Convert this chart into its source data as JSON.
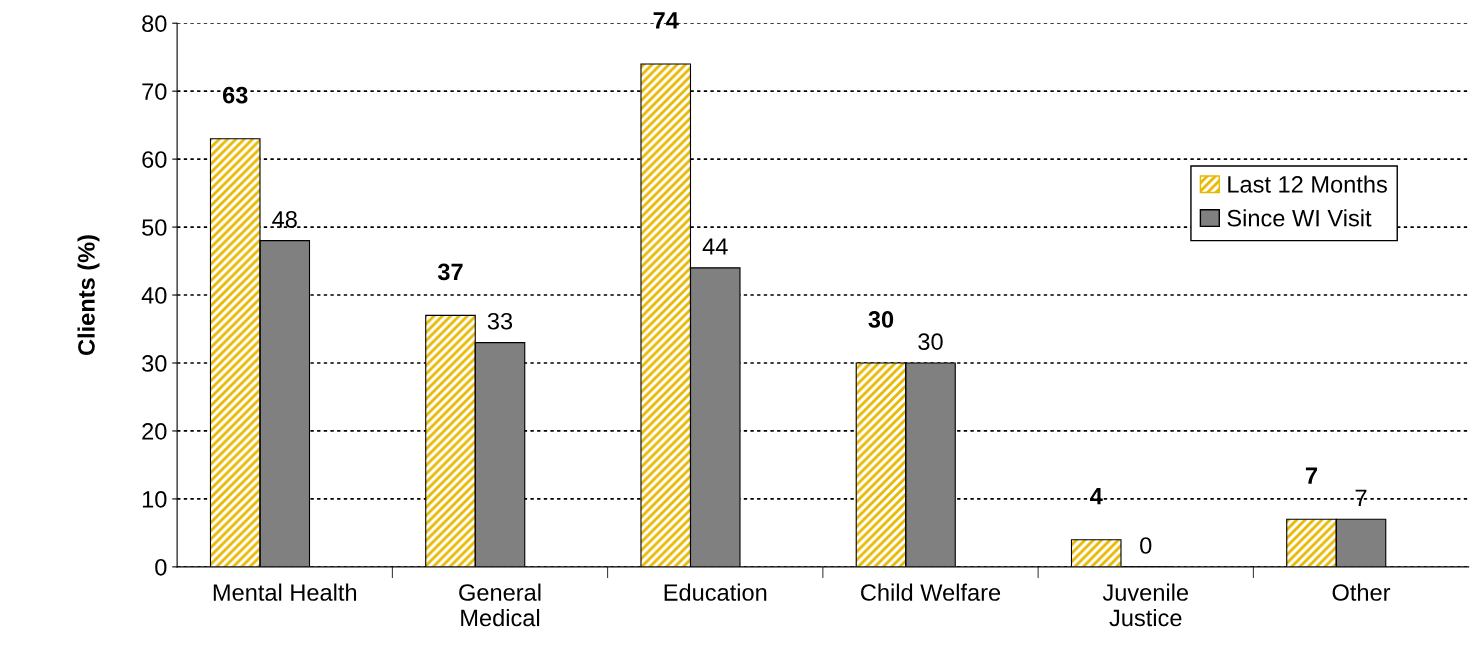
{
  "chart_data": {
    "type": "bar",
    "ylabel": "Clients (%)",
    "categories": [
      "Mental Health",
      "General\nMedical",
      "Education",
      "Child Welfare",
      "Juvenile\nJustice",
      "Other"
    ],
    "series": [
      {
        "name": "Last 12 Months",
        "color": "#e8b800",
        "values": [
          63,
          37,
          74,
          30,
          4,
          7
        ]
      },
      {
        "name": "Since WI Visit",
        "color": "#808080",
        "values": [
          48,
          33,
          44,
          30,
          0,
          7
        ]
      }
    ],
    "ylim": [
      0,
      80
    ],
    "yticks": [
      0,
      10,
      20,
      30,
      40,
      50,
      60,
      70,
      80
    ],
    "grid": "y",
    "legend": "top right",
    "data_labels": true
  }
}
